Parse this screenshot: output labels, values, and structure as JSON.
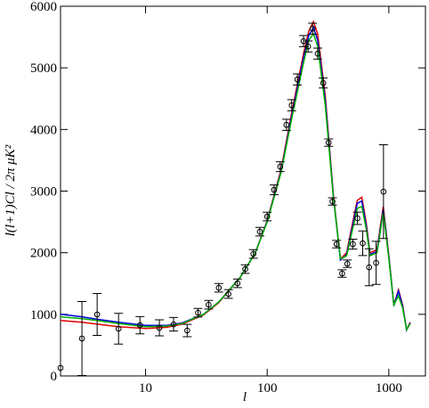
{
  "chart_data": {
    "type": "line",
    "x_label": "l",
    "y_label": "l(l+1)Cl / 2π μK²",
    "xscale": "log",
    "xlim": [
      2,
      2000
    ],
    "ylim": [
      0,
      6000
    ],
    "xticks": [
      10,
      100,
      1000
    ],
    "yticks": [
      0,
      1000,
      2000,
      3000,
      4000,
      5000,
      6000
    ],
    "series": [
      {
        "color": "#e00000",
        "x": [
          2,
          3,
          4,
          6,
          10,
          15,
          20,
          30,
          40,
          60,
          80,
          100,
          130,
          160,
          200,
          220,
          240,
          260,
          300,
          350,
          400,
          450,
          500,
          550,
          600,
          650,
          700,
          800,
          900,
          1000,
          1100,
          1200,
          1300,
          1400,
          1500
        ],
        "values": [
          900,
          870,
          840,
          800,
          770,
          790,
          840,
          990,
          1190,
          1600,
          2000,
          2520,
          3350,
          4300,
          5250,
          5600,
          5750,
          5550,
          4550,
          2950,
          1900,
          2000,
          2450,
          2850,
          2900,
          2500,
          2000,
          2050,
          2750,
          1950,
          1150,
          1400,
          1150,
          750,
          870
        ]
      },
      {
        "color": "#0000e0",
        "x": [
          2,
          3,
          4,
          6,
          10,
          15,
          20,
          30,
          40,
          60,
          80,
          100,
          130,
          160,
          200,
          220,
          240,
          260,
          300,
          350,
          400,
          450,
          500,
          550,
          600,
          650,
          700,
          800,
          900,
          1000,
          1100,
          1200,
          1300,
          1400,
          1500
        ],
        "values": [
          1000,
          960,
          920,
          870,
          820,
          820,
          860,
          1000,
          1200,
          1600,
          2000,
          2510,
          3320,
          4250,
          5180,
          5530,
          5650,
          5450,
          4480,
          2920,
          1880,
          1970,
          2400,
          2800,
          2840,
          2450,
          1970,
          2020,
          2700,
          1930,
          1140,
          1380,
          1130,
          745,
          860
        ]
      },
      {
        "color": "#00b000",
        "x": [
          2,
          3,
          4,
          6,
          10,
          15,
          20,
          30,
          40,
          60,
          80,
          100,
          130,
          160,
          200,
          220,
          240,
          260,
          300,
          350,
          400,
          450,
          500,
          550,
          600,
          650,
          700,
          800,
          900,
          1000,
          1100,
          1200,
          1300,
          1400,
          1500
        ],
        "values": [
          960,
          930,
          900,
          850,
          800,
          810,
          850,
          1000,
          1200,
          1600,
          2000,
          2500,
          3300,
          4200,
          5100,
          5450,
          5550,
          5350,
          4400,
          2900,
          1900,
          1950,
          2350,
          2720,
          2750,
          2400,
          1950,
          2000,
          2650,
          1900,
          1150,
          1300,
          1100,
          750,
          850
        ]
      }
    ],
    "points": {
      "color": "#000000",
      "x": [
        2,
        3,
        4,
        6,
        9,
        13,
        17,
        22,
        27,
        33,
        40,
        48,
        57,
        66,
        77,
        87,
        100,
        114,
        128,
        144,
        159,
        177,
        199,
        217,
        236,
        260,
        289,
        320,
        344,
        372,
        413,
        456,
        506,
        552,
        610,
        689,
        786,
        904
      ],
      "values": [
        130,
        607,
        997,
        766,
        824,
        780,
        838,
        737,
        1026,
        1156,
        1430,
        1330,
        1503,
        1734,
        1980,
        2341,
        2587,
        3020,
        3396,
        4075,
        4393,
        4812,
        5434,
        5347,
        5636,
        5231,
        4754,
        3786,
        2832,
        2139,
        1662,
        1821,
        2139,
        2558,
        2153,
        1763,
        1835,
        2991
      ],
      "errors": [
        0,
        600,
        340,
        250,
        140,
        130,
        110,
        100,
        70,
        70,
        70,
        70,
        70,
        70,
        70,
        70,
        70,
        80,
        80,
        90,
        90,
        90,
        90,
        90,
        90,
        90,
        80,
        60,
        60,
        60,
        60,
        60,
        80,
        100,
        200,
        300,
        350,
        760
      ]
    }
  }
}
